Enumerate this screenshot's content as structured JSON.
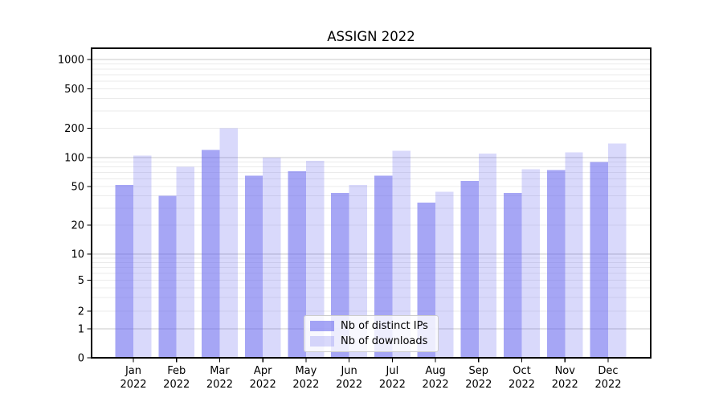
{
  "figure": {
    "background": "#ffffff"
  },
  "chart_data": {
    "type": "bar",
    "title": "ASSIGN 2022",
    "xlabel": "",
    "ylabel": "",
    "yscale": "symlog",
    "yticks": [
      0,
      1,
      2,
      5,
      10,
      20,
      50,
      100,
      200,
      500,
      1000
    ],
    "ylim": [
      0,
      1100
    ],
    "grid": "horizontal major lines at 1,10,100,1000 (darker) plus minor log lines 2-9 per decade (lighter)",
    "legend_position": "lower center inside plot",
    "categories": [
      "Jan",
      "Feb",
      "Mar",
      "Apr",
      "May",
      "Jun",
      "Jul",
      "Aug",
      "Sep",
      "Oct",
      "Nov",
      "Dec"
    ],
    "x_tick_year": "2022",
    "series": [
      {
        "name": "Nb of distinct IPs",
        "color": "#6666ee",
        "fill_opacity": 0.58,
        "values": [
          52,
          40,
          120,
          65,
          72,
          43,
          65,
          34,
          57,
          43,
          74,
          90
        ]
      },
      {
        "name": "Nb of downloads",
        "color": "#6666ee",
        "fill_opacity": 0.25,
        "values": [
          105,
          80,
          200,
          100,
          93,
          52,
          117,
          44,
          110,
          76,
          113,
          140
        ]
      }
    ],
    "colors": {
      "major_grid": "#c9c9c9",
      "minor_grid": "#ebebeb",
      "axis": "#000000",
      "text": "#000000"
    }
  }
}
